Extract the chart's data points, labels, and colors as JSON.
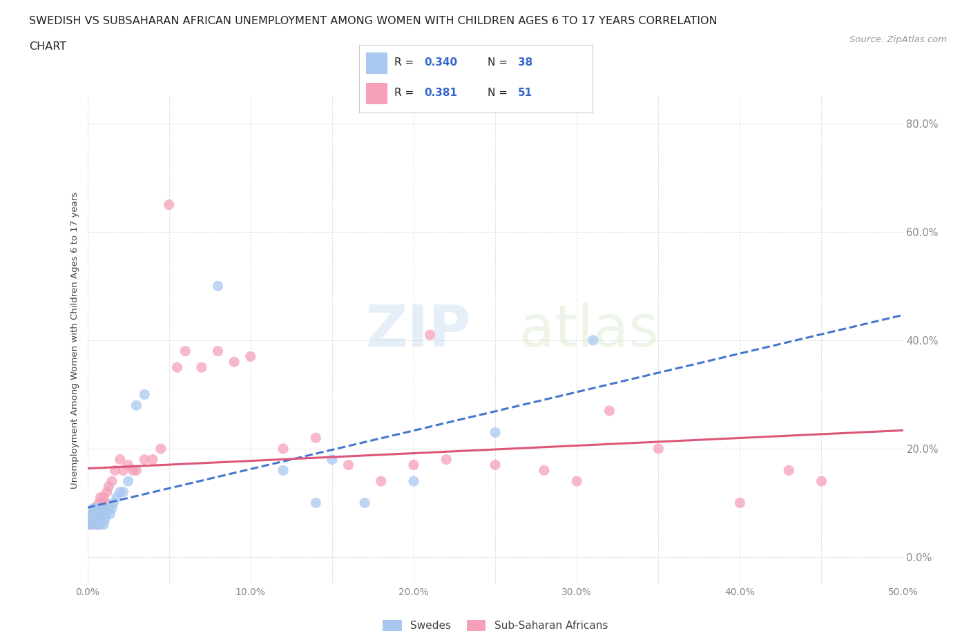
{
  "title_line1": "SWEDISH VS SUBSAHARAN AFRICAN UNEMPLOYMENT AMONG WOMEN WITH CHILDREN AGES 6 TO 17 YEARS CORRELATION",
  "title_line2": "CHART",
  "source_text": "Source: ZipAtlas.com",
  "ylabel": "Unemployment Among Women with Children Ages 6 to 17 years",
  "xlim": [
    0.0,
    0.5
  ],
  "ylim": [
    -0.05,
    0.85
  ],
  "xticklabels": [
    "0.0%",
    "",
    "10.0%",
    "",
    "20.0%",
    "",
    "30.0%",
    "",
    "40.0%",
    "",
    "50.0%"
  ],
  "xtick_vals": [
    0.0,
    0.05,
    0.1,
    0.15,
    0.2,
    0.25,
    0.3,
    0.35,
    0.4,
    0.45,
    0.5
  ],
  "ytick_vals": [
    0.0,
    0.2,
    0.4,
    0.6,
    0.8
  ],
  "yticklabels": [
    "0.0%",
    "20.0%",
    "40.0%",
    "60.0%",
    "80.0%"
  ],
  "swede_color": "#a8c8f0",
  "swede_edge_color": "#88aad8",
  "pink_color": "#f5a0b8",
  "pink_edge_color": "#e080a0",
  "swede_line_color": "#4477cc",
  "pink_line_color": "#dd5577",
  "R_swede": 0.34,
  "N_swede": 38,
  "R_african": 0.381,
  "N_african": 51,
  "legend_label_swede": "Swedes",
  "legend_label_african": "Sub-Saharan Africans",
  "watermark_zip": "ZIP",
  "watermark_atlas": "atlas",
  "background_color": "#ffffff",
  "grid_color": "#dddddd",
  "swedes_x": [
    0.001,
    0.002,
    0.003,
    0.003,
    0.004,
    0.004,
    0.005,
    0.005,
    0.006,
    0.006,
    0.007,
    0.007,
    0.008,
    0.008,
    0.009,
    0.009,
    0.01,
    0.01,
    0.011,
    0.012,
    0.013,
    0.014,
    0.015,
    0.016,
    0.018,
    0.02,
    0.022,
    0.025,
    0.03,
    0.035,
    0.08,
    0.12,
    0.14,
    0.15,
    0.17,
    0.2,
    0.25,
    0.31
  ],
  "swedes_y": [
    0.06,
    0.07,
    0.06,
    0.08,
    0.07,
    0.09,
    0.07,
    0.09,
    0.06,
    0.08,
    0.07,
    0.09,
    0.06,
    0.08,
    0.07,
    0.09,
    0.06,
    0.08,
    0.07,
    0.08,
    0.09,
    0.08,
    0.09,
    0.1,
    0.11,
    0.12,
    0.12,
    0.14,
    0.28,
    0.3,
    0.5,
    0.16,
    0.1,
    0.18,
    0.1,
    0.14,
    0.23,
    0.4
  ],
  "africans_x": [
    0.001,
    0.002,
    0.003,
    0.003,
    0.004,
    0.004,
    0.005,
    0.005,
    0.006,
    0.006,
    0.007,
    0.007,
    0.008,
    0.008,
    0.009,
    0.01,
    0.011,
    0.012,
    0.013,
    0.015,
    0.017,
    0.02,
    0.022,
    0.025,
    0.028,
    0.03,
    0.035,
    0.04,
    0.045,
    0.05,
    0.055,
    0.06,
    0.07,
    0.08,
    0.09,
    0.1,
    0.12,
    0.14,
    0.16,
    0.18,
    0.2,
    0.21,
    0.22,
    0.25,
    0.28,
    0.3,
    0.32,
    0.35,
    0.4,
    0.43,
    0.45
  ],
  "africans_y": [
    0.06,
    0.07,
    0.06,
    0.08,
    0.07,
    0.09,
    0.07,
    0.09,
    0.06,
    0.08,
    0.08,
    0.1,
    0.09,
    0.11,
    0.1,
    0.11,
    0.1,
    0.12,
    0.13,
    0.14,
    0.16,
    0.18,
    0.16,
    0.17,
    0.16,
    0.16,
    0.18,
    0.18,
    0.2,
    0.65,
    0.35,
    0.38,
    0.35,
    0.38,
    0.36,
    0.37,
    0.2,
    0.22,
    0.17,
    0.14,
    0.17,
    0.41,
    0.18,
    0.17,
    0.16,
    0.14,
    0.27,
    0.2,
    0.1,
    0.16,
    0.14
  ]
}
